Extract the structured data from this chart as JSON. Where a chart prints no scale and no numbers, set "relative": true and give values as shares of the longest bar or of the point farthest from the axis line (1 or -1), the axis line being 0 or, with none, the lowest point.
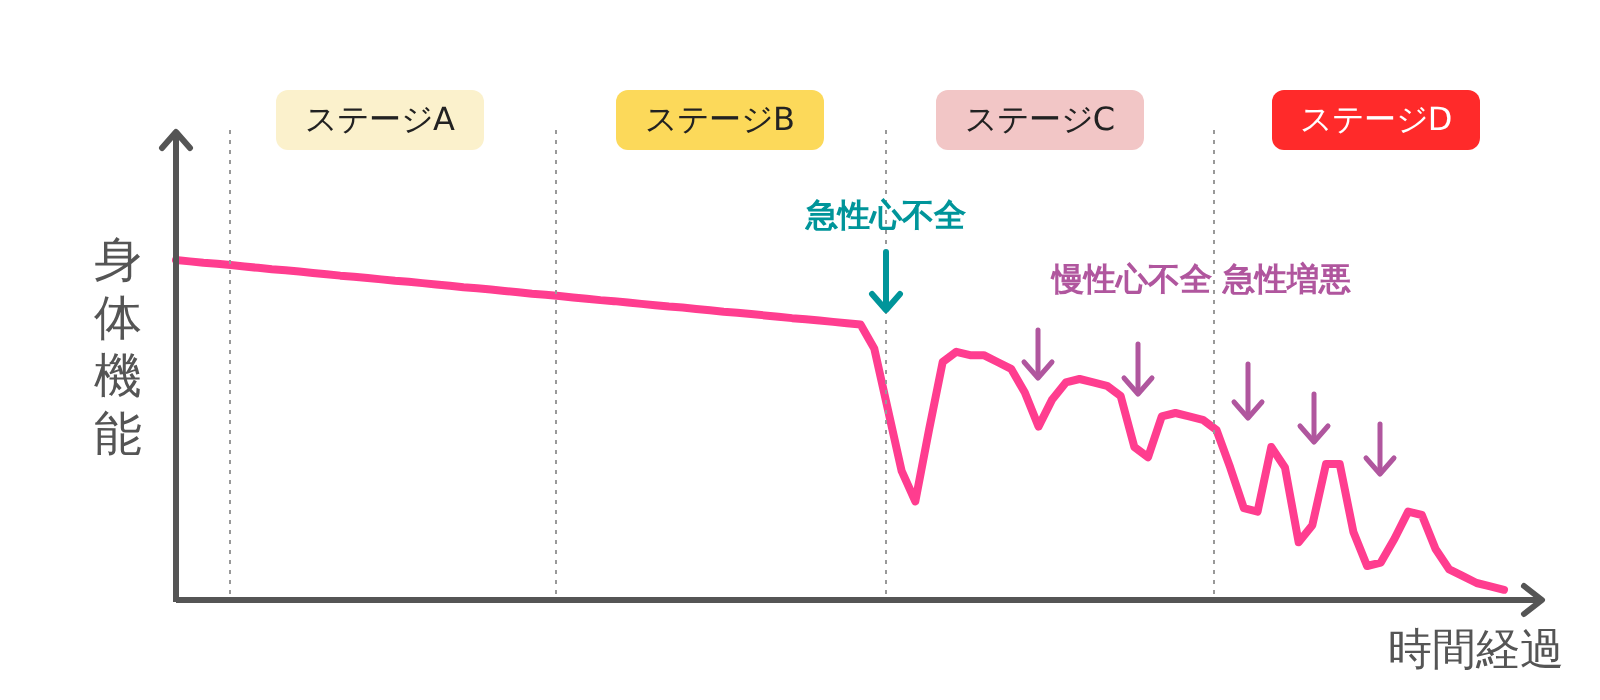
{
  "chart_data": {
    "type": "line",
    "relative": true,
    "xlabel": "時間経過",
    "ylabel": "身体機能",
    "categories": [
      null,
      null,
      null,
      null,
      null,
      null,
      null,
      null,
      null,
      null,
      null,
      null,
      null,
      null,
      null,
      null,
      null,
      null,
      null,
      null,
      null,
      null,
      null,
      null,
      null,
      null,
      null,
      null,
      null,
      null,
      null,
      null,
      null,
      null,
      null,
      null,
      null,
      null,
      null,
      null,
      null,
      null,
      null,
      null,
      null,
      null,
      null,
      null,
      null,
      null,
      null,
      null,
      null,
      null,
      null,
      null,
      null,
      null,
      null,
      null,
      null,
      null,
      null,
      null,
      null,
      null,
      null,
      null,
      null,
      null,
      null,
      null,
      null,
      null,
      null,
      null,
      null,
      null,
      null,
      null,
      null,
      null,
      null,
      null,
      null,
      null,
      null,
      null,
      null,
      null,
      null,
      null,
      null,
      null,
      null,
      null,
      null,
      null
    ],
    "series": [
      {
        "color": "#ff3d8f",
        "values": [
          1.0,
          0.996,
          0.992,
          0.989,
          0.985,
          0.981,
          0.977,
          0.973,
          0.97,
          0.966,
          0.962,
          0.958,
          0.954,
          0.951,
          0.947,
          0.943,
          0.939,
          0.936,
          0.932,
          0.928,
          0.924,
          0.92,
          0.917,
          0.913,
          0.909,
          0.905,
          0.901,
          0.898,
          0.894,
          0.89,
          0.886,
          0.882,
          0.879,
          0.875,
          0.871,
          0.867,
          0.863,
          0.86,
          0.856,
          0.852,
          0.848,
          0.845,
          0.841,
          0.837,
          0.833,
          0.829,
          0.826,
          0.822,
          0.818,
          0.814,
          0.81,
          0.74,
          0.56,
          0.38,
          0.29,
          0.5,
          0.7,
          0.73,
          0.72,
          0.72,
          0.7,
          0.68,
          0.61,
          0.51,
          0.59,
          0.64,
          0.65,
          0.64,
          0.63,
          0.6,
          0.45,
          0.42,
          0.54,
          0.55,
          0.54,
          0.53,
          0.5,
          0.39,
          0.27,
          0.26,
          0.45,
          0.39,
          0.17,
          0.22,
          0.4,
          0.4,
          0.2,
          0.1,
          0.11,
          0.18,
          0.26,
          0.25,
          0.15,
          0.09,
          0.07,
          0.05,
          0.04,
          0.03
        ]
      }
    ],
    "annotations": [
      "ステージA",
      "ステージB",
      "ステージC",
      "ステージD",
      "急性心不全",
      "慢性心不全 急性増悪"
    ]
  }
}
